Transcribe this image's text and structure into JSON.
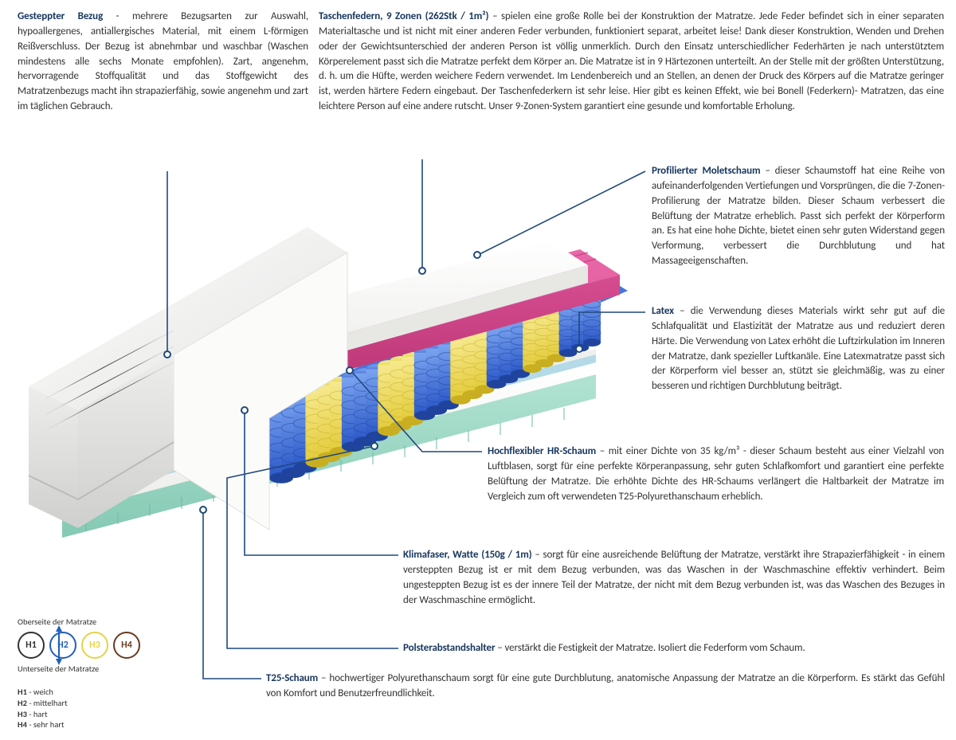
{
  "colors": {
    "title": "#17365D",
    "body": "#333333",
    "leader": "#1F497D",
    "cover_light": "#F3F3F2",
    "cover_mid": "#E4E4E3",
    "cover_dark": "#CFCFCE",
    "foam_white": "#F9F9F7",
    "foam_pink_top": "#E85FA2",
    "foam_pink_side": "#C63D80",
    "spring_blue": "#2F62D0",
    "spring_blue_light": "#6C96EC",
    "spring_yellow": "#E8D24A",
    "spring_yellow_light": "#F4E68A",
    "latex_top": "#AED6E8",
    "base_teal": "#97D6C4",
    "base_teal_dark": "#6FB8A3",
    "h1_border": "#333333",
    "h2_border": "#1F5FBF",
    "h3_border": "#E8D24A",
    "h4_border": "#6B3A1F"
  },
  "s1": {
    "title": "Gesteppter Bezug",
    "body": " - mehrere Bezugsarten zur Auswahl, hypoallergenes, antiallergisches Material, mit einem L-förmigen Reißverschluss. Der Bezug ist abnehmbar und waschbar (Waschen mindestens alle sechs Monate empfohlen). Zart, angenehm, hervorragende Stoffqualität und das Stoffgewicht des Matratzenbezugs macht ihn strapazierfähig, sowie angenehm und zart im täglichen Gebrauch."
  },
  "s2": {
    "title": "Taschenfedern, 9 Zonen (262Stk / 1m²)",
    "body": " – spielen eine große Rolle bei der Konstruktion der Matratze. Jede Feder befindet sich in einer separaten Materialtasche und ist nicht mit einer anderen Feder verbunden, funktioniert separat, arbeitet leise! Dank dieser Konstruktion, Wenden und Drehen oder der Gewichtsunterschied der anderen Person ist völlig unmerklich. Durch den Einsatz unterschiedlicher Federhärten je nach unterstütztem Körperelement passt sich die Matratze perfekt dem Körper an. Die Matratze ist in 9 Härtezonen unterteilt. An der Stelle mit der größten Unterstützung, d. h. um die Hüfte, werden weichere Federn verwendet. Im Lendenbereich und an Stellen, an denen der Druck des Körpers auf die Matratze geringer ist, werden härtere Federn eingebaut. Der Taschenfederkern ist sehr leise. Hier gibt es keinen Effekt, wie bei Bonell (Federkern)- Matratzen, das eine leichtere Person auf eine andere rutscht. Unser 9-Zonen-System garantiert eine gesunde und komfortable Erholung."
  },
  "s3": {
    "title": "Profilierter Moletschaum",
    "body": " – dieser Schaumstoff hat eine Reihe von aufeinanderfolgenden Vertiefungen und Vorsprüngen, die die 7-Zonen-Profilierung der Matratze bilden. Dieser Schaum verbessert die Belüftung der Matratze erheblich. Passt sich perfekt der Körperform an. Es hat eine hohe Dichte, bietet einen sehr guten Widerstand gegen Verformung, verbessert die Durchblutung und hat Massageeigenschaften."
  },
  "s4": {
    "title": "Latex",
    "body": " – die Verwendung dieses Materials wirkt sehr gut auf die Schlafqualität und Elastizität der Matratze aus und reduziert deren Härte. Die Verwendung von Latex erhöht die Luftzirkulation im Inneren der Matratze, dank spezieller Luftkanäle. Eine Latexmatratze passt sich der Körperform viel besser an, stützt sie gleichmäßig, was zu einer besseren und richtigen Durchblutung beiträgt."
  },
  "s5": {
    "title": "Hochflexibler HR-Schaum",
    "body": " – mit einer Dichte von 35 kg/m³ - dieser Schaum besteht aus einer Vielzahl von Luftblasen, sorgt für eine perfekte Körperanpassung, sehr guten Schlafkomfort und garantiert eine perfekte Belüftung der Matratze. Die erhöhte Dichte des HR-Schaums verlängert die Haltbarkeit der Matratze im Vergleich zum oft verwendeten T25-Polyurethanschaum erheblich."
  },
  "s6": {
    "title": "Klimafaser, Watte (150g / 1m)",
    "body": " – sorgt für eine ausreichende Belüftung der Matratze, verstärkt ihre Strapazierfähigkeit - in einem versteppten Bezug ist er mit dem Bezug verbunden, was das Waschen in der Waschmaschine effektiv verhindert. Beim ungesteppten Bezug ist es der innere Teil der Matratze, der nicht mit dem Bezug verbunden ist, was das Waschen des Bezuges in der Waschmaschine ermöglicht."
  },
  "s7": {
    "title": "Polsterabstandshalter",
    "body": " – verstärkt die Festigkeit der Matratze. Isoliert die Federform vom Schaum."
  },
  "s8": {
    "title": "T25-Schaum",
    "body": " – hochwertiger Polyurethanschaum sorgt für eine gute Durchblutung, anatomische Anpassung der Matratze an die Körperform. Es stärkt das Gefühl von Komfort und Benutzerfreundlichkeit."
  },
  "legend": {
    "top_caption": "Oberseite der Matratze",
    "bottom_caption": "Unterseite der Matratze",
    "circles": [
      {
        "label": "H1",
        "border": "#333333",
        "text": "#333333"
      },
      {
        "label": "H2",
        "border": "#1F5FBF",
        "text": "#1F5FBF"
      },
      {
        "label": "H3",
        "border": "#E8D24A",
        "text": "#E8D24A"
      },
      {
        "label": "H4",
        "border": "#6B3A1F",
        "text": "#6B3A1F"
      }
    ],
    "rows": [
      {
        "k": "H1",
        "v": " - weich"
      },
      {
        "k": "H2",
        "v": " - mittelhart"
      },
      {
        "k": "H3",
        "v": " - hart"
      },
      {
        "k": "H4",
        "v": " - sehr hart"
      }
    ]
  },
  "diagram": {
    "spring_zones": [
      "blue",
      "yellow",
      "blue",
      "yellow",
      "blue",
      "yellow",
      "blue",
      "yellow",
      "blue"
    ]
  }
}
